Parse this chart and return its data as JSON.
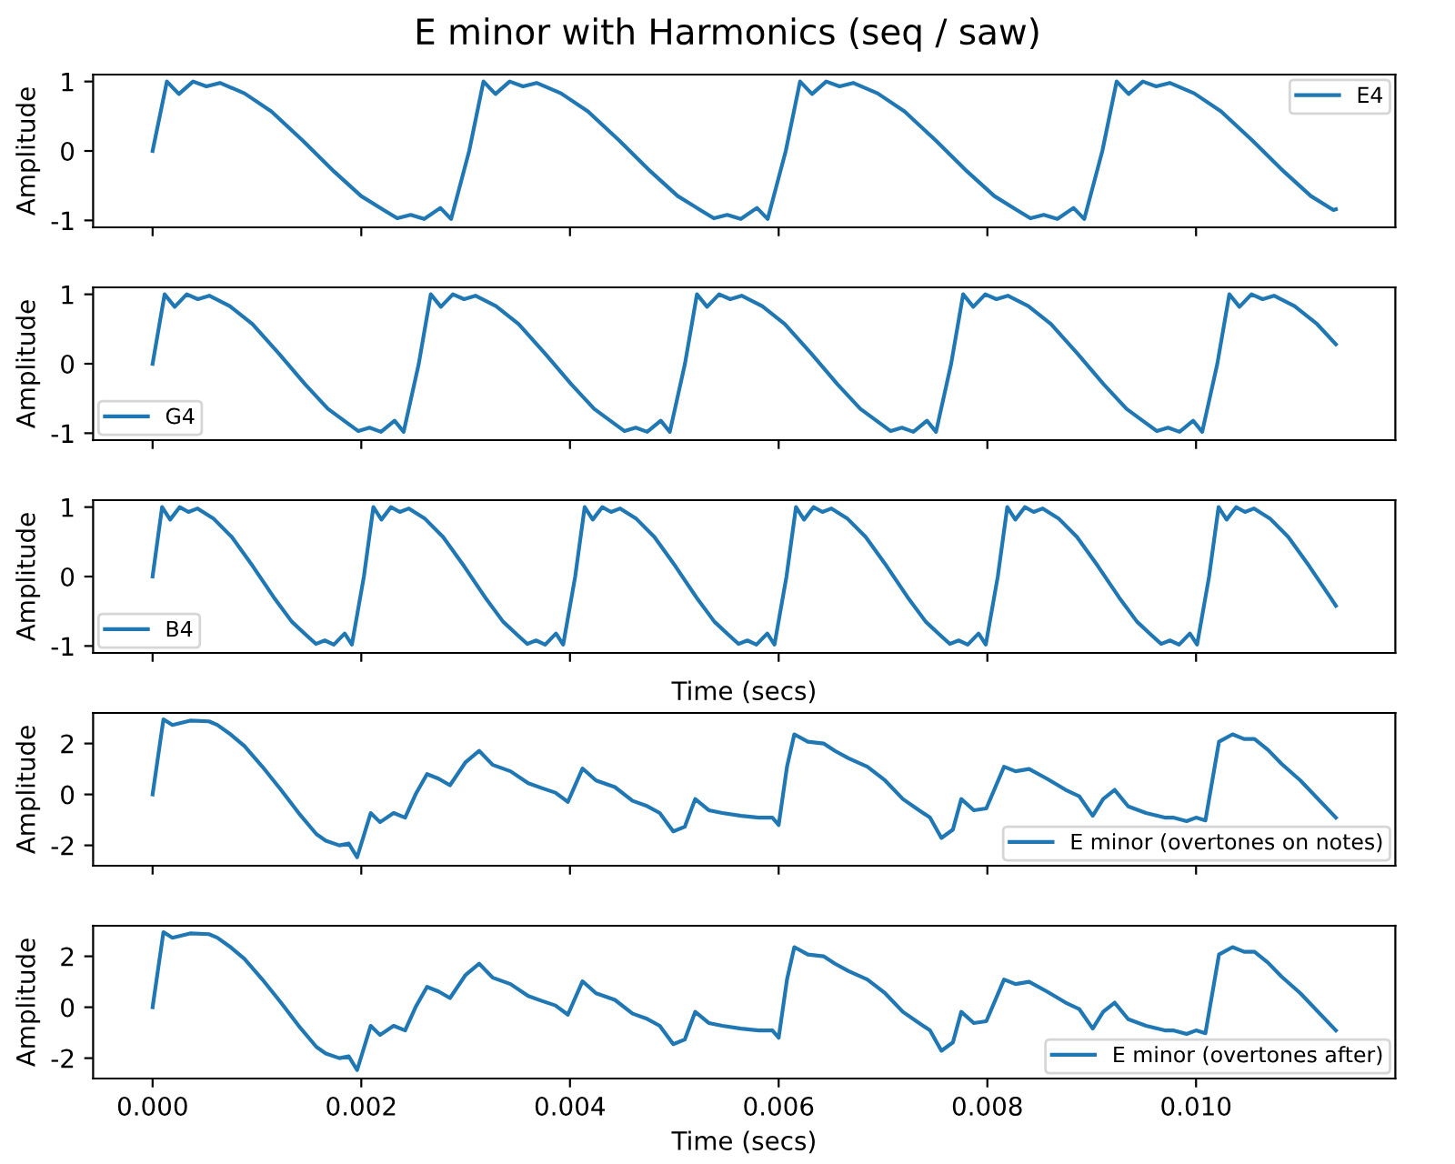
{
  "chart_data": [
    {
      "type": "line",
      "title": "E minor with Harmonics (seq / saw)",
      "ylabel": "Amplitude",
      "legend": "top right",
      "tick_labels": "y",
      "xlim": [
        -0.00057,
        0.01191
      ],
      "ylim": [
        -1.1,
        1.1
      ],
      "yticks": [
        -1,
        0,
        1
      ],
      "xticks": [
        {
          "value": 0,
          "label": null
        },
        {
          "value": 0.002,
          "label": null
        },
        {
          "value": 0.004,
          "label": null
        },
        {
          "value": 0.006,
          "label": null
        },
        {
          "value": 0.008,
          "label": null
        },
        {
          "value": 0.01,
          "label": null
        }
      ],
      "series": [
        {
          "name": "E4",
          "color": "#1f77b4",
          "x": [
            0,
            0.000137,
            0.000252,
            0.000388,
            0.000516,
            0.000646,
            0.00088,
            0.001138,
            0.001438,
            0.001742,
            0.001999,
            0.002215,
            0.002345,
            0.002473,
            0.002603,
            0.002758,
            0.002861,
            0.003034,
            0.003171,
            0.003286,
            0.003422,
            0.00355,
            0.00368,
            0.003914,
            0.004172,
            0.004472,
            0.004776,
            0.005033,
            0.005249,
            0.005379,
            0.005507,
            0.005637,
            0.005792,
            0.005895,
            0.006068,
            0.006205,
            0.00632,
            0.006456,
            0.006584,
            0.006714,
            0.006948,
            0.007206,
            0.007506,
            0.00781,
            0.008067,
            0.008283,
            0.008413,
            0.008541,
            0.008671,
            0.008826,
            0.008929,
            0.009102,
            0.009239,
            0.009354,
            0.00949,
            0.009618,
            0.009748,
            0.009982,
            0.01024,
            0.01054,
            0.010844,
            0.011101,
            0.011317,
            0.01134
          ],
          "values": [
            0,
            1.0,
            0.82,
            1.0,
            0.93,
            0.98,
            0.83,
            0.57,
            0.15,
            -0.3,
            -0.65,
            -0.85,
            -0.97,
            -0.92,
            -0.98,
            -0.82,
            -0.98,
            0,
            1.0,
            0.82,
            1.0,
            0.93,
            0.98,
            0.83,
            0.57,
            0.15,
            -0.3,
            -0.65,
            -0.85,
            -0.97,
            -0.92,
            -0.98,
            -0.82,
            -0.98,
            0,
            1.0,
            0.82,
            1.0,
            0.93,
            0.98,
            0.83,
            0.57,
            0.15,
            -0.3,
            -0.65,
            -0.85,
            -0.97,
            -0.92,
            -0.98,
            -0.82,
            -0.98,
            0,
            1.0,
            0.82,
            1.0,
            0.93,
            0.98,
            0.83,
            0.57,
            0.15,
            -0.3,
            -0.65,
            -0.85,
            -0.84
          ]
        }
      ]
    },
    {
      "type": "line",
      "ylabel": "Amplitude",
      "legend": "bottom left",
      "tick_labels": "y",
      "xlim": [
        -0.00057,
        0.01191
      ],
      "ylim": [
        -1.1,
        1.1
      ],
      "yticks": [
        -1,
        0,
        1
      ],
      "xticks": [
        {
          "value": 0,
          "label": null
        },
        {
          "value": 0.002,
          "label": null
        },
        {
          "value": 0.004,
          "label": null
        },
        {
          "value": 0.006,
          "label": null
        },
        {
          "value": 0.008,
          "label": null
        },
        {
          "value": 0.01,
          "label": null
        }
      ],
      "series": [
        {
          "name": "G4",
          "color": "#1f77b4",
          "x": [
            0,
            0.000115,
            0.000212,
            0.000327,
            0.000434,
            0.000543,
            0.00074,
            0.000957,
            0.001209,
            0.001464,
            0.001681,
            0.001862,
            0.001972,
            0.002079,
            0.002189,
            0.002319,
            0.002406,
            0.002551,
            0.002666,
            0.002763,
            0.002878,
            0.002985,
            0.003094,
            0.003291,
            0.003508,
            0.00376,
            0.004015,
            0.004232,
            0.004413,
            0.004523,
            0.00463,
            0.00474,
            0.00487,
            0.004957,
            0.005102,
            0.005217,
            0.005314,
            0.005429,
            0.005536,
            0.005645,
            0.005842,
            0.006059,
            0.006311,
            0.006566,
            0.006783,
            0.006964,
            0.007074,
            0.007181,
            0.007291,
            0.007421,
            0.007508,
            0.007653,
            0.007768,
            0.007865,
            0.00798,
            0.008087,
            0.008196,
            0.008393,
            0.00861,
            0.008862,
            0.009117,
            0.009334,
            0.009515,
            0.009625,
            0.009732,
            0.009842,
            0.009972,
            0.010059,
            0.010204,
            0.010319,
            0.010416,
            0.010531,
            0.010638,
            0.010747,
            0.010944,
            0.011161,
            0.01134
          ],
          "values": [
            0,
            1.0,
            0.82,
            1.0,
            0.93,
            0.98,
            0.83,
            0.57,
            0.15,
            -0.3,
            -0.65,
            -0.85,
            -0.97,
            -0.92,
            -0.98,
            -0.82,
            -0.98,
            0,
            1.0,
            0.82,
            1.0,
            0.93,
            0.98,
            0.83,
            0.57,
            0.15,
            -0.3,
            -0.65,
            -0.85,
            -0.97,
            -0.92,
            -0.98,
            -0.82,
            -0.98,
            0,
            1.0,
            0.82,
            1.0,
            0.93,
            0.98,
            0.83,
            0.57,
            0.15,
            -0.3,
            -0.65,
            -0.85,
            -0.97,
            -0.92,
            -0.98,
            -0.82,
            -0.98,
            0,
            1.0,
            0.82,
            1.0,
            0.93,
            0.98,
            0.83,
            0.57,
            0.15,
            -0.3,
            -0.65,
            -0.85,
            -0.97,
            -0.92,
            -0.98,
            -0.82,
            -0.98,
            0,
            1.0,
            0.82,
            1.0,
            0.93,
            0.98,
            0.83,
            0.57,
            0.28
          ]
        }
      ]
    },
    {
      "type": "line",
      "ylabel": "Amplitude",
      "xlabel": "Time (secs)",
      "legend": "bottom left",
      "tick_labels": "y",
      "xlim": [
        -0.00057,
        0.01191
      ],
      "ylim": [
        -1.1,
        1.1
      ],
      "yticks": [
        -1,
        0,
        1
      ],
      "xticks": [
        {
          "value": 0,
          "label": null
        },
        {
          "value": 0.002,
          "label": null
        },
        {
          "value": 0.004,
          "label": null
        },
        {
          "value": 0.006,
          "label": null
        },
        {
          "value": 0.008,
          "label": null
        },
        {
          "value": 0.01,
          "label": null
        }
      ],
      "series": [
        {
          "name": "B4",
          "color": "#1f77b4",
          "x": [
            0,
            9.1e-05,
            0.000168,
            0.000259,
            0.000344,
            0.000431,
            0.000587,
            0.000759,
            0.00096,
            0.001162,
            0.001334,
            0.001478,
            0.001565,
            0.00165,
            0.001737,
            0.001841,
            0.00191,
            0.002025,
            0.002116,
            0.002193,
            0.002284,
            0.002369,
            0.002456,
            0.002612,
            0.002784,
            0.002985,
            0.003187,
            0.003359,
            0.003503,
            0.00359,
            0.003675,
            0.003762,
            0.003866,
            0.003935,
            0.00405,
            0.004141,
            0.004218,
            0.004309,
            0.004394,
            0.004481,
            0.004637,
            0.004809,
            0.00501,
            0.005212,
            0.005384,
            0.005528,
            0.005615,
            0.0057,
            0.005787,
            0.005891,
            0.00596,
            0.006075,
            0.006166,
            0.006243,
            0.006334,
            0.006419,
            0.006506,
            0.006662,
            0.006834,
            0.007035,
            0.007237,
            0.007409,
            0.007553,
            0.00764,
            0.007725,
            0.007812,
            0.007916,
            0.007985,
            0.0081,
            0.008191,
            0.008268,
            0.008359,
            0.008444,
            0.008531,
            0.008687,
            0.008859,
            0.00906,
            0.009262,
            0.009434,
            0.009578,
            0.009665,
            0.00975,
            0.009837,
            0.009941,
            0.01001,
            0.010125,
            0.010216,
            0.010293,
            0.010384,
            0.010469,
            0.010556,
            0.010712,
            0.010884,
            0.011085,
            0.011287,
            0.01134
          ],
          "values": [
            0,
            1.0,
            0.82,
            1.0,
            0.93,
            0.98,
            0.83,
            0.57,
            0.15,
            -0.3,
            -0.65,
            -0.85,
            -0.97,
            -0.92,
            -0.98,
            -0.82,
            -0.98,
            0,
            1.0,
            0.82,
            1.0,
            0.93,
            0.98,
            0.83,
            0.57,
            0.15,
            -0.3,
            -0.65,
            -0.85,
            -0.97,
            -0.92,
            -0.98,
            -0.82,
            -0.98,
            0,
            1.0,
            0.82,
            1.0,
            0.93,
            0.98,
            0.83,
            0.57,
            0.15,
            -0.3,
            -0.65,
            -0.85,
            -0.97,
            -0.92,
            -0.98,
            -0.82,
            -0.98,
            0,
            1.0,
            0.82,
            1.0,
            0.93,
            0.98,
            0.83,
            0.57,
            0.15,
            -0.3,
            -0.65,
            -0.85,
            -0.97,
            -0.92,
            -0.98,
            -0.82,
            -0.98,
            0,
            1.0,
            0.82,
            1.0,
            0.93,
            0.98,
            0.83,
            0.57,
            0.15,
            -0.3,
            -0.65,
            -0.85,
            -0.97,
            -0.92,
            -0.98,
            -0.82,
            -0.98,
            0,
            1.0,
            0.82,
            1.0,
            0.93,
            0.98,
            0.83,
            0.57,
            0.15,
            -0.3,
            -0.42
          ]
        }
      ]
    },
    {
      "type": "line",
      "ylabel": "Amplitude",
      "legend": "bottom right",
      "tick_labels": "y",
      "xlim": [
        -0.00057,
        0.01191
      ],
      "ylim": [
        -2.8,
        3.2
      ],
      "yticks": [
        -2,
        0,
        2
      ],
      "xticks": [
        {
          "value": 0,
          "label": null
        },
        {
          "value": 0.002,
          "label": null
        },
        {
          "value": 0.004,
          "label": null
        },
        {
          "value": 0.006,
          "label": null
        },
        {
          "value": 0.008,
          "label": null
        },
        {
          "value": 0.01,
          "label": null
        }
      ],
      "series": [
        {
          "name": "E minor (overtones on notes)",
          "color": "#1f77b4",
          "x": [
            0,
            0.000104,
            0.00019,
            0.00036,
            0.00054,
            0.00062,
            0.00075,
            0.00088,
            0.00105,
            0.00123,
            0.0014,
            0.00157,
            0.00166,
            0.00179,
            0.00188,
            0.00196,
            0.00209,
            0.00218,
            0.00231,
            0.00242,
            0.00252,
            0.00263,
            0.00274,
            0.00285,
            0.003,
            0.00313,
            0.00326,
            0.00343,
            0.0036,
            0.00373,
            0.00386,
            0.00398,
            0.00412,
            0.00425,
            0.00443,
            0.0046,
            0.00473,
            0.00486,
            0.00499,
            0.0051,
            0.0052,
            0.00533,
            0.00546,
            0.00564,
            0.00581,
            0.00594,
            0.006,
            0.00608,
            0.00615,
            0.00628,
            0.00643,
            0.00654,
            0.00667,
            0.00685,
            0.00702,
            0.00719,
            0.00732,
            0.00745,
            0.00756,
            0.00767,
            0.00775,
            0.00787,
            0.00799,
            0.00816,
            0.00827,
            0.0084,
            0.00857,
            0.00875,
            0.00888,
            0.00901,
            0.00911,
            0.00922,
            0.00935,
            0.00952,
            0.0097,
            0.00978,
            0.00991,
            0.01,
            0.01009,
            0.01022,
            0.01035,
            0.01046,
            0.01056,
            0.01069,
            0.01082,
            0.011,
            0.01134
          ],
          "values": [
            0,
            2.95,
            2.73,
            2.9,
            2.87,
            2.73,
            2.35,
            1.9,
            1.1,
            0.18,
            -0.73,
            -1.56,
            -1.82,
            -2.0,
            -1.93,
            -2.47,
            -0.73,
            -1.09,
            -0.73,
            -0.91,
            0,
            0.8,
            0.62,
            0.36,
            1.27,
            1.71,
            1.16,
            0.91,
            0.44,
            0.25,
            0.07,
            -0.29,
            1.02,
            0.55,
            0.29,
            -0.25,
            -0.44,
            -0.73,
            -1.45,
            -1.27,
            -0.18,
            -0.62,
            -0.73,
            -0.84,
            -0.91,
            -0.91,
            -1.2,
            1.09,
            2.36,
            2.07,
            2.0,
            1.71,
            1.42,
            1.09,
            0.55,
            -0.18,
            -0.55,
            -0.91,
            -1.71,
            -1.38,
            -0.18,
            -0.62,
            -0.55,
            1.09,
            0.91,
            1.0,
            0.62,
            0.18,
            -0.07,
            -0.84,
            -0.18,
            0.18,
            -0.47,
            -0.73,
            -0.91,
            -0.91,
            -1.05,
            -0.91,
            -1.02,
            2.07,
            2.36,
            2.18,
            2.18,
            1.75,
            1.2,
            0.55,
            -0.91
          ]
        }
      ]
    },
    {
      "type": "line",
      "ylabel": "Amplitude",
      "xlabel": "Time (secs)",
      "legend": "bottom right",
      "xlim": [
        -0.00057,
        0.01191
      ],
      "ylim": [
        -2.8,
        3.2
      ],
      "yticks": [
        -2,
        0,
        2
      ],
      "xticks": [
        {
          "value": 0,
          "label": "0.000"
        },
        {
          "value": 0.002,
          "label": "0.002"
        },
        {
          "value": 0.004,
          "label": "0.004"
        },
        {
          "value": 0.006,
          "label": "0.006"
        },
        {
          "value": 0.008,
          "label": "0.008"
        },
        {
          "value": 0.01,
          "label": "0.010"
        }
      ],
      "series": [
        {
          "name": "E minor (overtones after)",
          "color": "#1f77b4",
          "x": [
            0,
            0.000104,
            0.00019,
            0.00036,
            0.00054,
            0.00062,
            0.00075,
            0.00088,
            0.00105,
            0.00123,
            0.0014,
            0.00157,
            0.00166,
            0.00179,
            0.00188,
            0.00196,
            0.00209,
            0.00218,
            0.00231,
            0.00242,
            0.00252,
            0.00263,
            0.00274,
            0.00285,
            0.003,
            0.00313,
            0.00326,
            0.00343,
            0.0036,
            0.00373,
            0.00386,
            0.00398,
            0.00412,
            0.00425,
            0.00443,
            0.0046,
            0.00473,
            0.00486,
            0.00499,
            0.0051,
            0.0052,
            0.00533,
            0.00546,
            0.00564,
            0.00581,
            0.00594,
            0.006,
            0.00608,
            0.00615,
            0.00628,
            0.00643,
            0.00654,
            0.00667,
            0.00685,
            0.00702,
            0.00719,
            0.00732,
            0.00745,
            0.00756,
            0.00767,
            0.00775,
            0.00787,
            0.00799,
            0.00816,
            0.00827,
            0.0084,
            0.00857,
            0.00875,
            0.00888,
            0.00901,
            0.00911,
            0.00922,
            0.00935,
            0.00952,
            0.0097,
            0.00978,
            0.00991,
            0.01,
            0.01009,
            0.01022,
            0.01035,
            0.01046,
            0.01056,
            0.01069,
            0.01082,
            0.011,
            0.01134
          ],
          "values": [
            0,
            2.95,
            2.73,
            2.9,
            2.87,
            2.73,
            2.35,
            1.9,
            1.1,
            0.18,
            -0.73,
            -1.56,
            -1.82,
            -2.0,
            -1.93,
            -2.47,
            -0.73,
            -1.09,
            -0.73,
            -0.91,
            0,
            0.8,
            0.62,
            0.36,
            1.27,
            1.71,
            1.16,
            0.91,
            0.44,
            0.25,
            0.07,
            -0.29,
            1.02,
            0.55,
            0.29,
            -0.25,
            -0.44,
            -0.73,
            -1.45,
            -1.27,
            -0.18,
            -0.62,
            -0.73,
            -0.84,
            -0.91,
            -0.91,
            -1.2,
            1.09,
            2.36,
            2.07,
            2.0,
            1.71,
            1.42,
            1.09,
            0.55,
            -0.18,
            -0.55,
            -0.91,
            -1.71,
            -1.38,
            -0.18,
            -0.62,
            -0.55,
            1.09,
            0.91,
            1.0,
            0.62,
            0.18,
            -0.07,
            -0.84,
            -0.18,
            0.18,
            -0.47,
            -0.73,
            -0.91,
            -0.91,
            -1.05,
            -0.91,
            -1.02,
            2.07,
            2.36,
            2.18,
            2.18,
            1.75,
            1.2,
            0.55,
            -0.91
          ]
        }
      ]
    }
  ]
}
